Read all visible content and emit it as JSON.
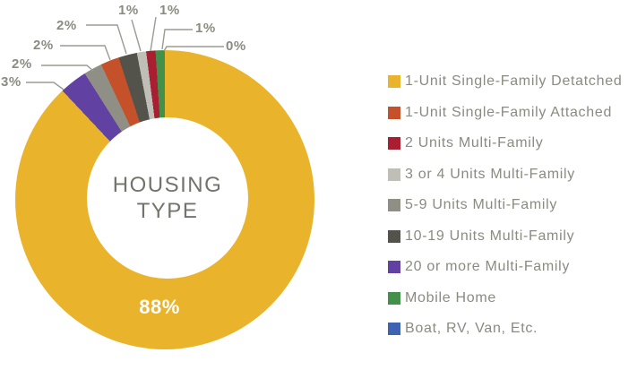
{
  "background_color": "#ffffff",
  "text_colors": {
    "center_label": "#73736b",
    "callout_label": "#8b8b82",
    "legend_label": "#8b8b82",
    "inside_label": "#ffffff",
    "leader_line": "#9b9b93"
  },
  "chart_data": {
    "type": "pie",
    "subtype": "donut",
    "title": "HOUSING TYPE",
    "center_label": {
      "line1": "HOUSING",
      "line2": "TYPE"
    },
    "categories": [
      "1-Unit Single-Family Detatched",
      "1-Unit Single-Family Attached",
      "2 Units Multi-Family",
      "3 or 4 Units Multi-Family",
      "5-9 Units Multi-Family",
      "10-19 Units Multi-Family",
      "20 or more Multi-Family",
      "Mobile Home",
      "Boat, RV, Van, Etc."
    ],
    "values": [
      88,
      2,
      1,
      1,
      2,
      2,
      3,
      1,
      0
    ],
    "colors": [
      "#e9b32b",
      "#c4512a",
      "#aa1e32",
      "#bfbfb7",
      "#8f8f85",
      "#53534b",
      "#6141a2",
      "#43904a",
      "#3e63b3"
    ],
    "draw_order_clockwise_from_top": [
      0,
      6,
      4,
      1,
      5,
      3,
      2,
      7,
      8
    ],
    "start_angle_deg": 0,
    "direction": "clockwise",
    "legend_position": "right",
    "inside_label": {
      "text": "88%",
      "category": "1-Unit Single-Family Detatched"
    },
    "callouts": [
      {
        "text": "3%",
        "category": "20 or more Multi-Family"
      },
      {
        "text": "2%",
        "category": "5-9 Units Multi-Family"
      },
      {
        "text": "2%",
        "category": "1-Unit Single-Family Attached"
      },
      {
        "text": "2%",
        "category": "10-19 Units Multi-Family"
      },
      {
        "text": "1%",
        "category": "3 or 4 Units Multi-Family"
      },
      {
        "text": "1%",
        "category": "2 Units Multi-Family"
      },
      {
        "text": "1%",
        "category": "Mobile Home"
      },
      {
        "text": "0%",
        "category": "Boat, RV, Van, Etc."
      }
    ]
  }
}
